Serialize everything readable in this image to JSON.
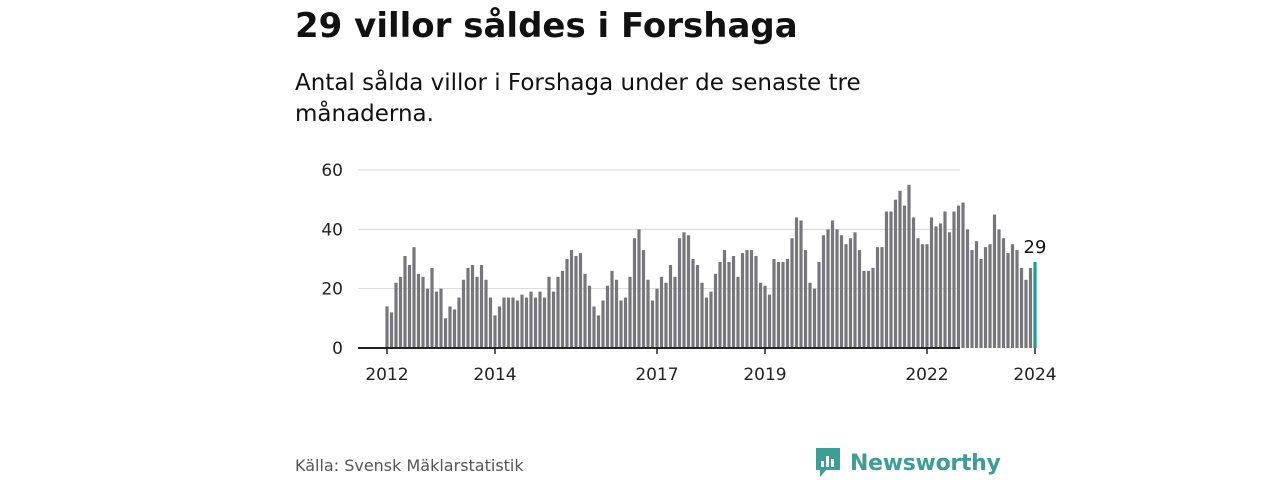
{
  "header": {
    "title": "29 villor såldes i Forshaga",
    "subtitle": "Antal sålda villor i Forshaga under de senaste tre månaderna."
  },
  "footer": {
    "source": "Källa: Svensk Mäklarstatistik",
    "brand": "Newsworthy"
  },
  "colors": {
    "bar": "#77767b",
    "highlight": "#1a9e96",
    "grid": "#d9d9d9",
    "brand": "#3d9e96"
  },
  "chart_data": {
    "type": "bar",
    "title": "29 villor såldes i Forshaga",
    "subtitle": "Antal sålda villor i Forshaga under de senaste tre månaderna.",
    "xlabel": "",
    "ylabel": "",
    "ylim": [
      0,
      60
    ],
    "yticks": [
      "0",
      "20",
      "40",
      "60"
    ],
    "xticks": [
      "2012",
      "2014",
      "2017",
      "2019",
      "2022",
      "2024"
    ],
    "last_label": "29",
    "grid": true,
    "values": [
      14,
      12,
      22,
      24,
      31,
      28,
      34,
      25,
      24,
      20,
      27,
      19,
      20,
      10,
      14,
      13,
      17,
      23,
      27,
      28,
      24,
      28,
      23,
      17,
      11,
      14,
      17,
      17,
      17,
      16,
      18,
      17,
      19,
      17,
      19,
      17,
      24,
      19,
      24,
      26,
      30,
      33,
      31,
      32,
      25,
      21,
      14,
      11,
      16,
      21,
      26,
      23,
      16,
      17,
      24,
      37,
      40,
      33,
      23,
      16,
      20,
      24,
      22,
      28,
      24,
      37,
      39,
      38,
      30,
      28,
      22,
      17,
      19,
      25,
      29,
      33,
      29,
      31,
      24,
      32,
      33,
      33,
      31,
      22,
      21,
      18,
      30,
      29,
      29,
      30,
      37,
      44,
      43,
      33,
      22,
      20,
      29,
      38,
      40,
      43,
      40,
      38,
      35,
      37,
      39,
      33,
      26,
      26,
      27,
      34,
      34,
      46,
      46,
      50,
      53,
      48,
      55,
      44,
      37,
      35,
      35,
      44,
      41,
      42,
      46,
      39,
      46,
      48,
      49,
      40,
      33,
      36,
      30,
      34,
      35,
      45,
      40,
      37,
      32,
      35,
      33,
      27,
      23,
      27,
      29
    ]
  }
}
